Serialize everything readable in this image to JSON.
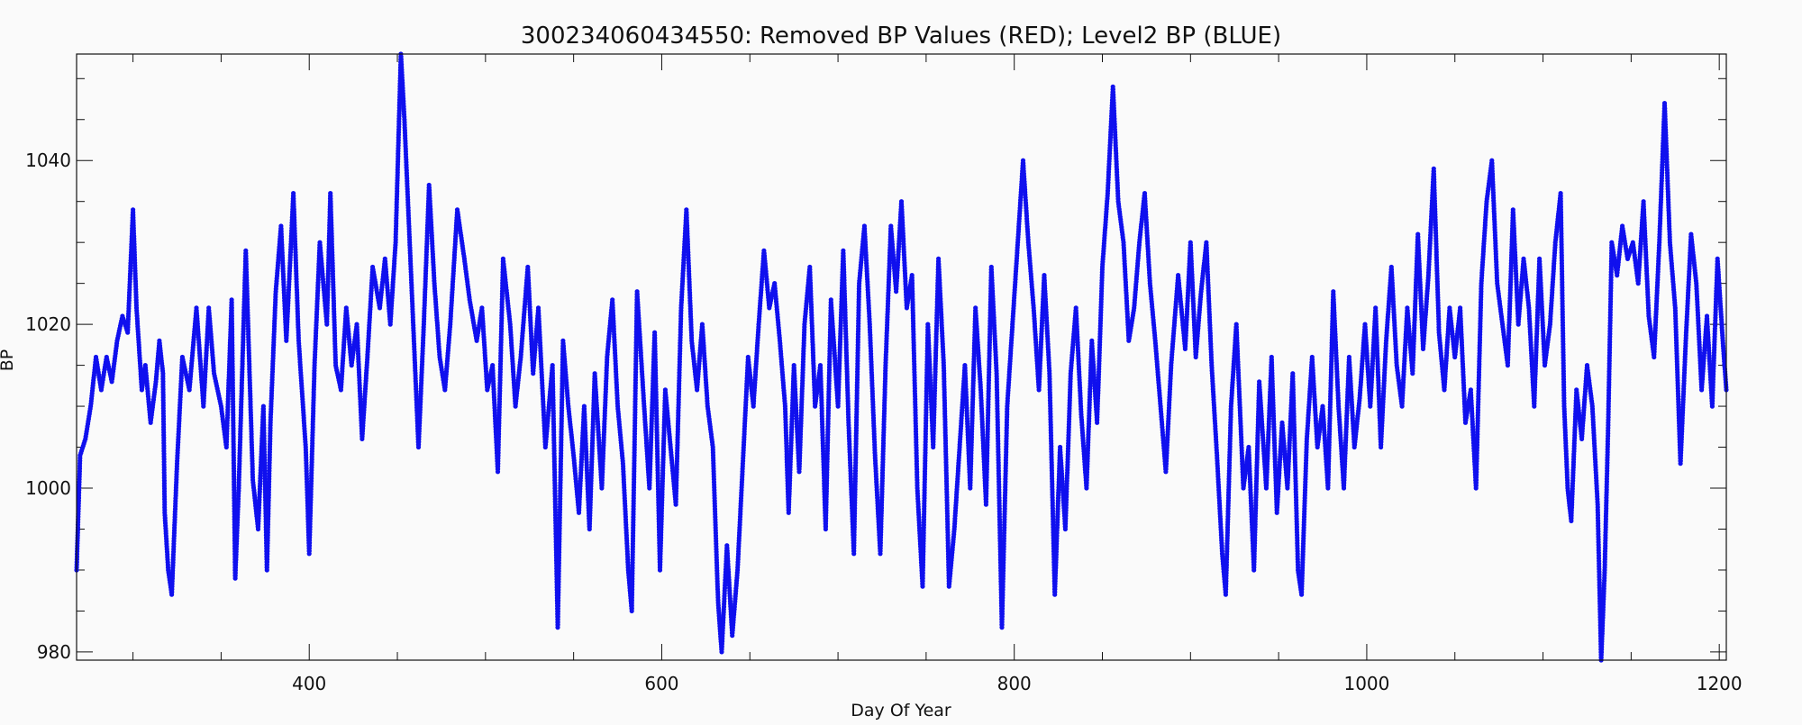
{
  "chart_data": {
    "type": "scatter",
    "title": "300234060434550: Removed BP Values (RED); Level2 BP (BLUE)",
    "xlabel": "Day Of Year",
    "ylabel": "BP",
    "xlim": [
      268,
      1204
    ],
    "ylim": [
      979,
      1053
    ],
    "x_ticks": [
      400,
      600,
      800,
      1000,
      1200
    ],
    "y_ticks": [
      980,
      1000,
      1020,
      1040
    ],
    "x_minor_step": 50,
    "y_minor_step": 5,
    "grid": false,
    "colors": {
      "level2": "#1010ee",
      "removed": "#ee1010"
    },
    "series": [
      {
        "marker": "dot",
        "color": "#1010ee",
        "points": [
          [
            268,
            990
          ],
          [
            270,
            1004
          ],
          [
            273,
            1006
          ],
          [
            276,
            1010
          ],
          [
            279,
            1016
          ],
          [
            282,
            1012
          ],
          [
            285,
            1016
          ],
          [
            288,
            1013
          ],
          [
            291,
            1018
          ],
          [
            294,
            1021
          ],
          [
            297,
            1019
          ],
          [
            300,
            1034
          ],
          [
            302,
            1022
          ],
          [
            305,
            1012
          ],
          [
            307,
            1015
          ],
          [
            310,
            1008
          ],
          [
            313,
            1013
          ],
          [
            315,
            1018
          ],
          [
            317,
            1014
          ],
          [
            318,
            997
          ],
          [
            320,
            990
          ],
          [
            322,
            987
          ],
          [
            325,
            1003
          ],
          [
            328,
            1016
          ],
          [
            332,
            1012
          ],
          [
            336,
            1022
          ],
          [
            340,
            1010
          ],
          [
            343,
            1022
          ],
          [
            346,
            1014
          ],
          [
            350,
            1010
          ],
          [
            353,
            1005
          ],
          [
            356,
            1023
          ],
          [
            358,
            989
          ],
          [
            360,
            1000
          ],
          [
            364,
            1029
          ],
          [
            368,
            1001
          ],
          [
            371,
            995
          ],
          [
            374,
            1010
          ],
          [
            376,
            990
          ],
          [
            378,
            1008
          ],
          [
            381,
            1024
          ],
          [
            384,
            1032
          ],
          [
            387,
            1018
          ],
          [
            391,
            1036
          ],
          [
            394,
            1018
          ],
          [
            398,
            1005
          ],
          [
            400,
            992
          ],
          [
            403,
            1015
          ],
          [
            406,
            1030
          ],
          [
            410,
            1020
          ],
          [
            412,
            1036
          ],
          [
            415,
            1015
          ],
          [
            418,
            1012
          ],
          [
            421,
            1022
          ],
          [
            424,
            1015
          ],
          [
            427,
            1020
          ],
          [
            430,
            1006
          ],
          [
            433,
            1016
          ],
          [
            436,
            1027
          ],
          [
            440,
            1022
          ],
          [
            443,
            1028
          ],
          [
            446,
            1020
          ],
          [
            449,
            1030
          ],
          [
            452,
            1053
          ],
          [
            454,
            1045
          ],
          [
            457,
            1030
          ],
          [
            460,
            1015
          ],
          [
            462,
            1005
          ],
          [
            465,
            1020
          ],
          [
            468,
            1037
          ],
          [
            471,
            1025
          ],
          [
            474,
            1016
          ],
          [
            477,
            1012
          ],
          [
            480,
            1020
          ],
          [
            484,
            1034
          ],
          [
            488,
            1028
          ],
          [
            491,
            1023
          ],
          [
            495,
            1018
          ],
          [
            498,
            1022
          ],
          [
            501,
            1012
          ],
          [
            504,
            1015
          ],
          [
            507,
            1002
          ],
          [
            510,
            1028
          ],
          [
            514,
            1020
          ],
          [
            517,
            1010
          ],
          [
            520,
            1016
          ],
          [
            524,
            1027
          ],
          [
            527,
            1014
          ],
          [
            530,
            1022
          ],
          [
            534,
            1005
          ],
          [
            538,
            1015
          ],
          [
            541,
            983
          ],
          [
            544,
            1018
          ],
          [
            547,
            1010
          ],
          [
            550,
            1004
          ],
          [
            553,
            997
          ],
          [
            556,
            1010
          ],
          [
            559,
            995
          ],
          [
            562,
            1014
          ],
          [
            566,
            1000
          ],
          [
            569,
            1016
          ],
          [
            572,
            1023
          ],
          [
            575,
            1010
          ],
          [
            578,
            1003
          ],
          [
            581,
            990
          ],
          [
            583,
            985
          ],
          [
            586,
            1024
          ],
          [
            590,
            1010
          ],
          [
            593,
            1000
          ],
          [
            596,
            1019
          ],
          [
            599,
            990
          ],
          [
            602,
            1012
          ],
          [
            605,
            1005
          ],
          [
            608,
            998
          ],
          [
            611,
            1022
          ],
          [
            614,
            1034
          ],
          [
            617,
            1018
          ],
          [
            620,
            1012
          ],
          [
            623,
            1020
          ],
          [
            626,
            1010
          ],
          [
            629,
            1005
          ],
          [
            632,
            986
          ],
          [
            634,
            980
          ],
          [
            637,
            993
          ],
          [
            640,
            982
          ],
          [
            643,
            990
          ],
          [
            646,
            1003
          ],
          [
            649,
            1016
          ],
          [
            652,
            1010
          ],
          [
            655,
            1020
          ],
          [
            658,
            1029
          ],
          [
            661,
            1022
          ],
          [
            664,
            1025
          ],
          [
            667,
            1018
          ],
          [
            670,
            1010
          ],
          [
            672,
            997
          ],
          [
            675,
            1015
          ],
          [
            678,
            1002
          ],
          [
            681,
            1020
          ],
          [
            684,
            1027
          ],
          [
            687,
            1010
          ],
          [
            690,
            1015
          ],
          [
            693,
            995
          ],
          [
            696,
            1023
          ],
          [
            700,
            1010
          ],
          [
            703,
            1029
          ],
          [
            706,
            1008
          ],
          [
            709,
            992
          ],
          [
            712,
            1025
          ],
          [
            715,
            1032
          ],
          [
            718,
            1020
          ],
          [
            721,
            1004
          ],
          [
            724,
            992
          ],
          [
            727,
            1015
          ],
          [
            730,
            1032
          ],
          [
            733,
            1024
          ],
          [
            736,
            1035
          ],
          [
            739,
            1022
          ],
          [
            742,
            1026
          ],
          [
            745,
            1000
          ],
          [
            748,
            988
          ],
          [
            751,
            1020
          ],
          [
            754,
            1005
          ],
          [
            757,
            1028
          ],
          [
            760,
            1015
          ],
          [
            763,
            988
          ],
          [
            766,
            995
          ],
          [
            769,
            1005
          ],
          [
            772,
            1015
          ],
          [
            775,
            1000
          ],
          [
            778,
            1022
          ],
          [
            781,
            1012
          ],
          [
            784,
            998
          ],
          [
            787,
            1027
          ],
          [
            790,
            1014
          ],
          [
            793,
            983
          ],
          [
            796,
            1010
          ],
          [
            799,
            1020
          ],
          [
            802,
            1030
          ],
          [
            805,
            1040
          ],
          [
            808,
            1030
          ],
          [
            811,
            1022
          ],
          [
            814,
            1012
          ],
          [
            817,
            1026
          ],
          [
            820,
            1014
          ],
          [
            823,
            987
          ],
          [
            826,
            1005
          ],
          [
            829,
            995
          ],
          [
            832,
            1014
          ],
          [
            835,
            1022
          ],
          [
            838,
            1009
          ],
          [
            841,
            1000
          ],
          [
            844,
            1018
          ],
          [
            847,
            1008
          ],
          [
            850,
            1027
          ],
          [
            853,
            1036
          ],
          [
            856,
            1049
          ],
          [
            859,
            1035
          ],
          [
            862,
            1030
          ],
          [
            865,
            1018
          ],
          [
            868,
            1022
          ],
          [
            871,
            1030
          ],
          [
            874,
            1036
          ],
          [
            877,
            1025
          ],
          [
            880,
            1018
          ],
          [
            883,
            1010
          ],
          [
            886,
            1002
          ],
          [
            889,
            1015
          ],
          [
            893,
            1026
          ],
          [
            897,
            1017
          ],
          [
            900,
            1030
          ],
          [
            903,
            1016
          ],
          [
            906,
            1024
          ],
          [
            909,
            1030
          ],
          [
            912,
            1015
          ],
          [
            915,
            1004
          ],
          [
            918,
            992
          ],
          [
            920,
            987
          ],
          [
            923,
            1010
          ],
          [
            926,
            1020
          ],
          [
            930,
            1000
          ],
          [
            933,
            1005
          ],
          [
            936,
            990
          ],
          [
            939,
            1013
          ],
          [
            943,
            1000
          ],
          [
            946,
            1016
          ],
          [
            949,
            997
          ],
          [
            952,
            1008
          ],
          [
            955,
            1000
          ],
          [
            958,
            1014
          ],
          [
            961,
            990
          ],
          [
            963,
            987
          ],
          [
            966,
            1006
          ],
          [
            969,
            1016
          ],
          [
            972,
            1005
          ],
          [
            975,
            1010
          ],
          [
            978,
            1000
          ],
          [
            981,
            1024
          ],
          [
            984,
            1010
          ],
          [
            987,
            1000
          ],
          [
            990,
            1016
          ],
          [
            993,
            1005
          ],
          [
            996,
            1011
          ],
          [
            999,
            1020
          ],
          [
            1002,
            1010
          ],
          [
            1005,
            1022
          ],
          [
            1008,
            1005
          ],
          [
            1011,
            1018
          ],
          [
            1014,
            1027
          ],
          [
            1017,
            1015
          ],
          [
            1020,
            1010
          ],
          [
            1023,
            1022
          ],
          [
            1026,
            1014
          ],
          [
            1029,
            1031
          ],
          [
            1032,
            1017
          ],
          [
            1035,
            1026
          ],
          [
            1038,
            1039
          ],
          [
            1041,
            1019
          ],
          [
            1044,
            1012
          ],
          [
            1047,
            1022
          ],
          [
            1050,
            1016
          ],
          [
            1053,
            1022
          ],
          [
            1056,
            1008
          ],
          [
            1059,
            1012
          ],
          [
            1062,
            1000
          ],
          [
            1065,
            1025
          ],
          [
            1068,
            1035
          ],
          [
            1071,
            1040
          ],
          [
            1074,
            1025
          ],
          [
            1077,
            1020
          ],
          [
            1080,
            1015
          ],
          [
            1083,
            1034
          ],
          [
            1086,
            1020
          ],
          [
            1089,
            1028
          ],
          [
            1092,
            1022
          ],
          [
            1095,
            1010
          ],
          [
            1098,
            1028
          ],
          [
            1101,
            1015
          ],
          [
            1104,
            1020
          ],
          [
            1107,
            1030
          ],
          [
            1110,
            1036
          ],
          [
            1112,
            1010
          ],
          [
            1114,
            1000
          ],
          [
            1116,
            996
          ],
          [
            1119,
            1012
          ],
          [
            1122,
            1006
          ],
          [
            1125,
            1015
          ],
          [
            1128,
            1010
          ],
          [
            1131,
            998
          ],
          [
            1133,
            979
          ],
          [
            1135,
            990
          ],
          [
            1137,
            1008
          ],
          [
            1139,
            1030
          ],
          [
            1142,
            1026
          ],
          [
            1145,
            1032
          ],
          [
            1148,
            1028
          ],
          [
            1151,
            1030
          ],
          [
            1154,
            1025
          ],
          [
            1157,
            1035
          ],
          [
            1160,
            1021
          ],
          [
            1163,
            1016
          ],
          [
            1166,
            1030
          ],
          [
            1169,
            1047
          ],
          [
            1172,
            1030
          ],
          [
            1175,
            1022
          ],
          [
            1178,
            1003
          ],
          [
            1181,
            1018
          ],
          [
            1184,
            1031
          ],
          [
            1187,
            1025
          ],
          [
            1190,
            1012
          ],
          [
            1193,
            1021
          ],
          [
            1196,
            1010
          ],
          [
            1199,
            1028
          ],
          [
            1202,
            1018
          ],
          [
            1204,
            1012
          ]
        ]
      }
    ]
  }
}
